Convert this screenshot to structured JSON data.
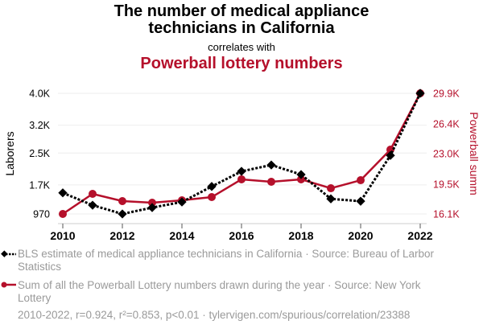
{
  "header": {
    "title_line1": "The number of medical appliance",
    "title_line2": "technicians in California",
    "subtitle": "correlates with",
    "title2": "Powerball lottery numbers"
  },
  "legend": [
    {
      "label": "BLS estimate of medical appliance technicians in California · Source: Bureau of Larbor Statistics",
      "color": "#000000",
      "marker": "diamond",
      "style": "dotted"
    },
    {
      "label": "Sum of all the Powerball Lottery numbers drawn during the year · Source: New York Lottery",
      "color": "#b5102b",
      "marker": "circle",
      "style": "solid"
    }
  ],
  "footer": "2010-2022, r=0.924, r²=0.853, p<0.01 · tylervigen.com/spurious/correlation/23388",
  "chart_data": {
    "type": "line",
    "title": "The number of medical appliance technicians in California correlates with Powerball lottery numbers",
    "x": [
      2010,
      2011,
      2012,
      2013,
      2014,
      2015,
      2016,
      2017,
      2018,
      2019,
      2020,
      2021,
      2022
    ],
    "xticks": [
      "2010",
      "2012",
      "2014",
      "2016",
      "2018",
      "2020",
      "2022"
    ],
    "xlim": [
      2010,
      2022
    ],
    "grid": true,
    "legend_position": "bottom",
    "series": [
      {
        "name": "BLS estimate of medical appliance technicians in California",
        "axis": "left",
        "color": "#000000",
        "values": [
          1500,
          1190,
          970,
          1130,
          1270,
          1660,
          2040,
          2200,
          1960,
          1350,
          1290,
          2440,
          4000
        ]
      },
      {
        "name": "Sum of all the Powerball Lottery numbers drawn during the year",
        "axis": "right",
        "color": "#b5102b",
        "values": [
          16100,
          18400,
          17570,
          17390,
          17660,
          18030,
          20060,
          19780,
          20060,
          19040,
          19960,
          23460,
          29900
        ]
      }
    ],
    "left_axis": {
      "label": "Laborers",
      "range": [
        970,
        4000
      ],
      "ticks": [
        970,
        1700,
        2500,
        3200,
        4000
      ],
      "tick_labels": [
        "970",
        "1.7K",
        "2.5K",
        "3.2K",
        "4.0K"
      ]
    },
    "right_axis": {
      "label": "Powerball summ",
      "range": [
        16100,
        29900
      ],
      "ticks": [
        16100,
        19500,
        23000,
        26400,
        29900
      ],
      "tick_labels": [
        "16.1K",
        "19.5K",
        "23.0K",
        "26.4K",
        "29.9K"
      ]
    }
  }
}
